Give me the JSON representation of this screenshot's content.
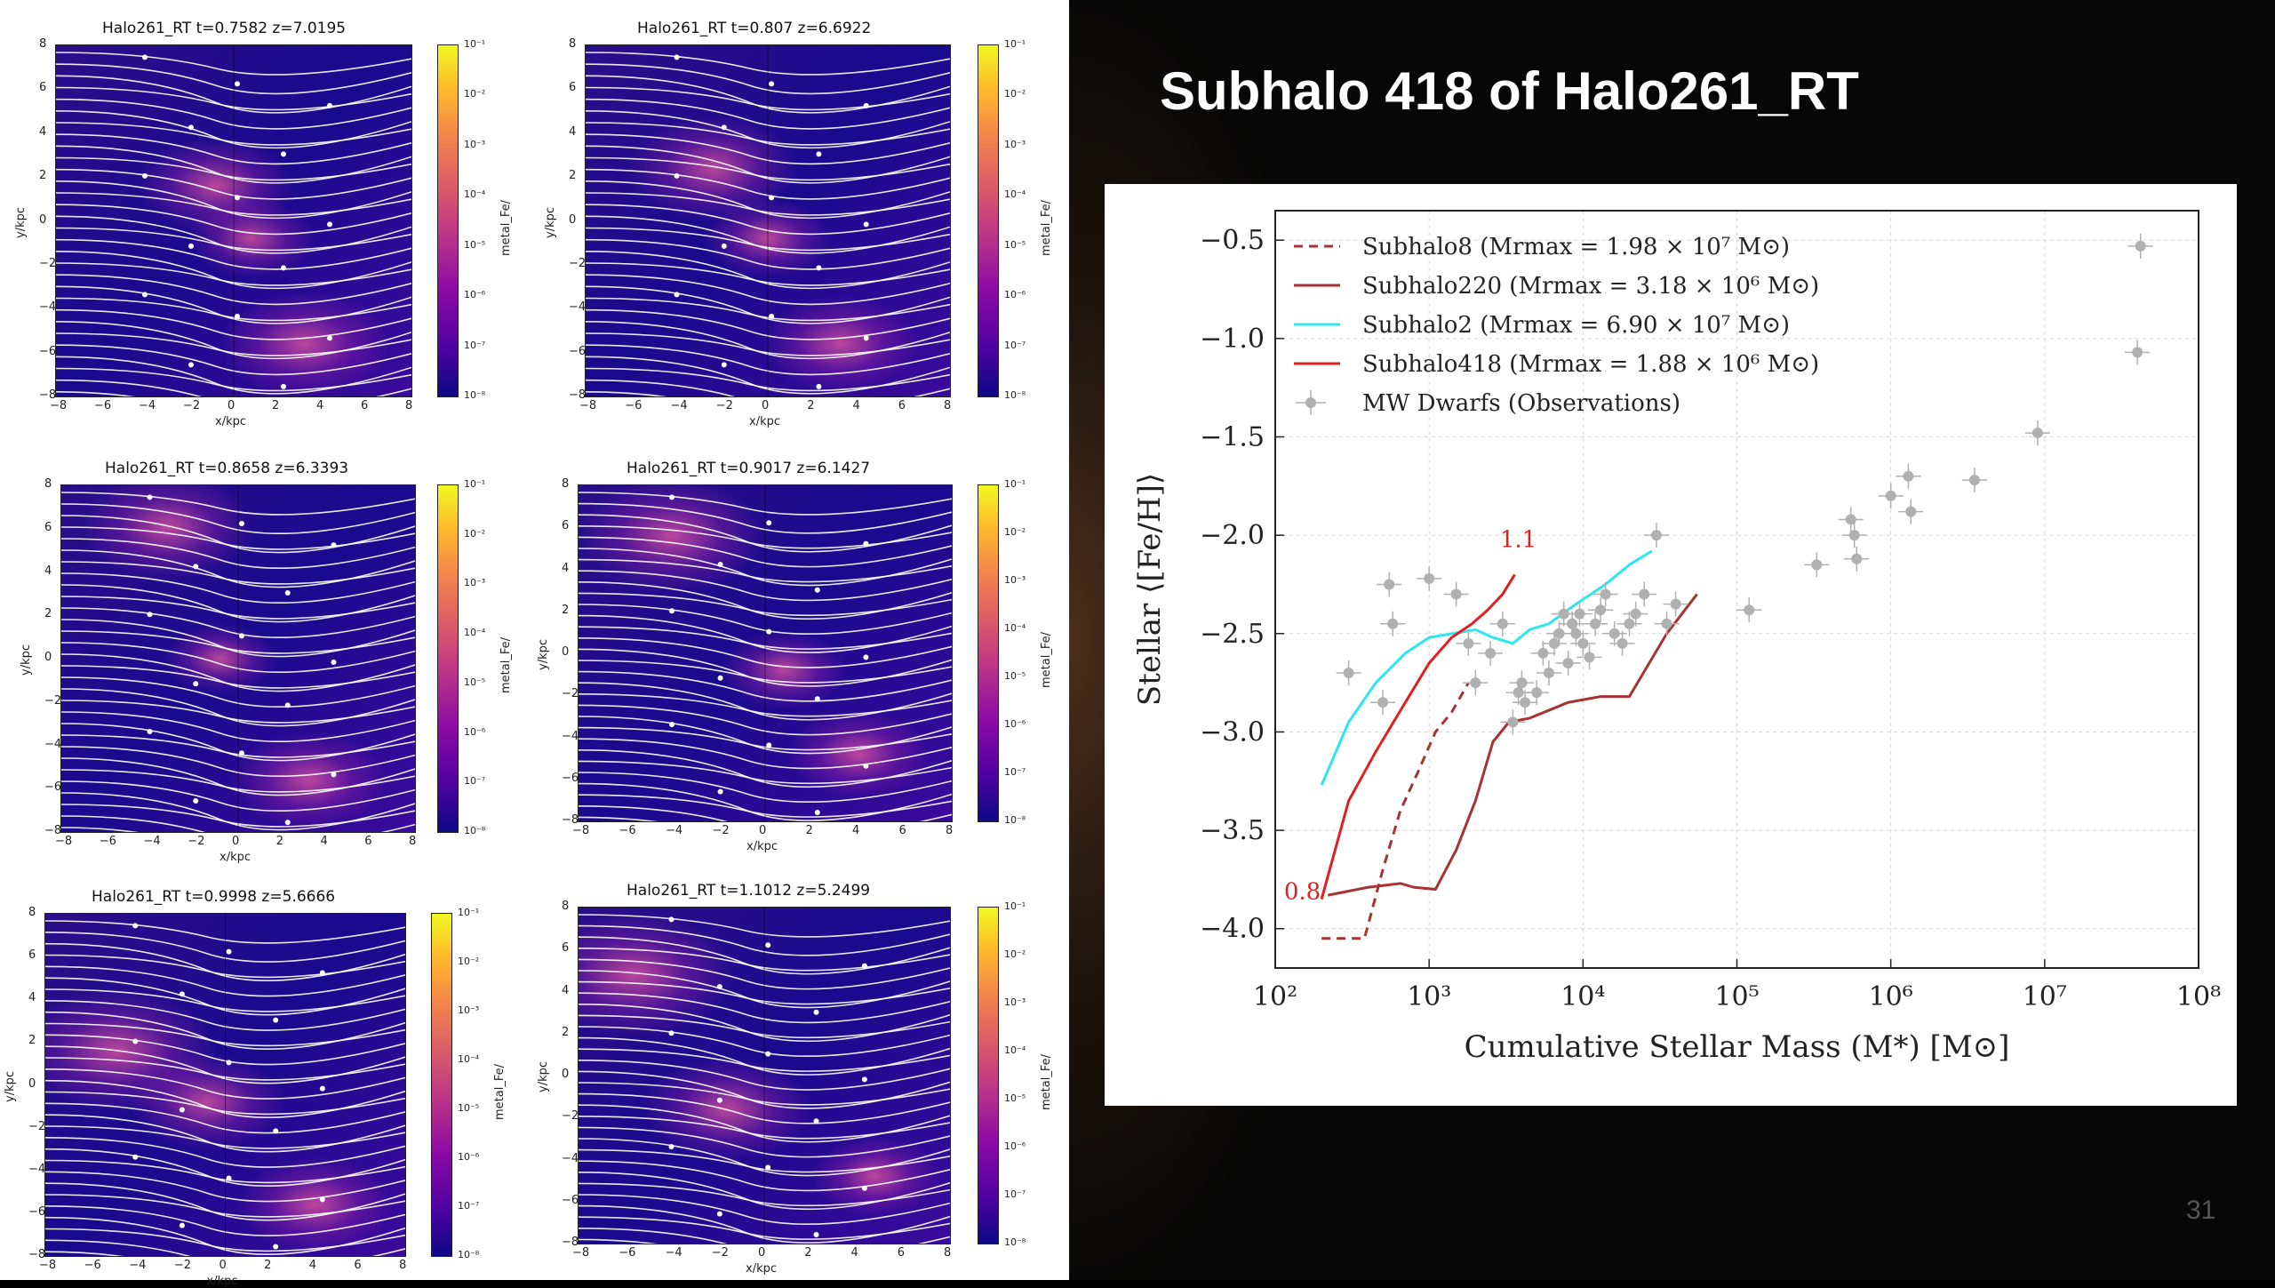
{
  "slide": {
    "title": "Subhalo 418 of Halo261_RT",
    "page_number": "31"
  },
  "panels": [
    {
      "title": "Halo261_RT  t=0.7582 z=7.0195"
    },
    {
      "title": "Halo261_RT  t=0.807 z=6.6922"
    },
    {
      "title": "Halo261_RT  t=0.8658 z=6.3393"
    },
    {
      "title": "Halo261_RT  t=0.9017 z=6.1427"
    },
    {
      "title": "Halo261_RT  t=0.9998 z=5.6666"
    },
    {
      "title": "Halo261_RT  t=1.1012 z=5.2499"
    }
  ],
  "panel_axes": {
    "xlabel": "x/kpc",
    "ylabel": "y/kpc",
    "ticks": [
      "−8",
      "−6",
      "−4",
      "−2",
      "0",
      "2",
      "4",
      "6",
      "8"
    ],
    "yticks": [
      "8",
      "6",
      "4",
      "2",
      "0",
      "−2",
      "−4",
      "−6",
      "−8"
    ],
    "colorbar_label": "metal_Fe/",
    "colorbar_ticks": [
      "10⁻¹",
      "10⁻²",
      "10⁻³",
      "10⁻⁴",
      "10⁻⁵",
      "10⁻⁶",
      "10⁻⁷",
      "10⁻⁸"
    ]
  },
  "chart_data": {
    "type": "line",
    "xlabel": "Cumulative Stellar Mass (M*) [M⊙]",
    "ylabel": "Stellar ⟨[Fe/H]⟩",
    "xscale": "log",
    "xlim": [
      100,
      100000000
    ],
    "ylim": [
      -4.2,
      -0.35
    ],
    "x_ticks": [
      "10²",
      "10³",
      "10⁴",
      "10⁵",
      "10⁶",
      "10⁷",
      "10⁸"
    ],
    "y_ticks": [
      "−0.5",
      "−1.0",
      "−1.5",
      "−2.0",
      "−2.5",
      "−3.0",
      "−3.5",
      "−4.0"
    ],
    "grid": true,
    "legend_position": "top-left",
    "annotations": [
      {
        "text": "1.1",
        "x": 3800,
        "y": -2.06,
        "color": "#e02020"
      },
      {
        "text": "0.8",
        "x": 150,
        "y": -3.85,
        "color": "#e02020"
      }
    ],
    "series": [
      {
        "name": "Subhalo8 (Mrmax = 1.98 × 10⁷ M⊙)",
        "color": "#a83232",
        "style": "dashed",
        "x": [
          200,
          380,
          500,
          650,
          850,
          1100,
          1400,
          1800
        ],
        "y": [
          -4.05,
          -4.05,
          -3.7,
          -3.4,
          -3.2,
          -3.0,
          -2.9,
          -2.75
        ]
      },
      {
        "name": "Subhalo220 (Mrmax = 3.18 × 10⁶ M⊙)",
        "color": "#a83232",
        "style": "solid",
        "x": [
          220,
          400,
          650,
          800,
          1100,
          1500,
          2000,
          2600,
          3300,
          4500,
          8000,
          13000,
          20000,
          35000,
          55000
        ],
        "y": [
          -3.83,
          -3.79,
          -3.77,
          -3.79,
          -3.8,
          -3.6,
          -3.35,
          -3.05,
          -2.95,
          -2.93,
          -2.85,
          -2.82,
          -2.82,
          -2.5,
          -2.3
        ]
      },
      {
        "name": "Subhalo2 (Mrmax = 6.90 × 10⁷ M⊙)",
        "color": "#2ee6f0",
        "style": "solid",
        "x": [
          200,
          300,
          450,
          700,
          1000,
          1400,
          2000,
          2600,
          3500,
          4500,
          6000,
          9000,
          14000,
          20000,
          28000
        ],
        "y": [
          -3.27,
          -2.95,
          -2.75,
          -2.6,
          -2.52,
          -2.5,
          -2.48,
          -2.52,
          -2.55,
          -2.48,
          -2.45,
          -2.35,
          -2.25,
          -2.15,
          -2.08
        ]
      },
      {
        "name": "Subhalo418 (Mrmax = 1.88 × 10⁶ M⊙)",
        "color": "#e02020",
        "style": "solid",
        "x": [
          200,
          300,
          450,
          700,
          1000,
          1400,
          1900,
          2400,
          3000,
          3600
        ],
        "y": [
          -3.85,
          -3.35,
          -3.1,
          -2.85,
          -2.65,
          -2.52,
          -2.45,
          -2.38,
          -2.3,
          -2.2
        ]
      },
      {
        "name": "MW Dwarfs (Observations)",
        "color": "#b0b0b0",
        "style": "markers",
        "x": [
          300,
          500,
          550,
          580,
          1000,
          1500,
          1800,
          2000,
          2500,
          3000,
          3500,
          3800,
          4000,
          4200,
          5000,
          5500,
          6000,
          6500,
          7000,
          7500,
          8000,
          8500,
          9000,
          9500,
          10000,
          11000,
          12000,
          13000,
          14000,
          16000,
          18000,
          20000,
          22000,
          25000,
          30000,
          35000,
          40000,
          120000,
          330000,
          550000,
          580000,
          600000,
          1000000,
          1300000,
          1350000,
          3500000,
          9000000,
          40000000,
          42000000
        ],
        "y": [
          -2.7,
          -2.85,
          -2.25,
          -2.45,
          -2.22,
          -2.3,
          -2.55,
          -2.75,
          -2.6,
          -2.45,
          -2.95,
          -2.8,
          -2.75,
          -2.85,
          -2.8,
          -2.6,
          -2.7,
          -2.55,
          -2.5,
          -2.4,
          -2.65,
          -2.45,
          -2.5,
          -2.4,
          -2.55,
          -2.62,
          -2.45,
          -2.38,
          -2.3,
          -2.5,
          -2.55,
          -2.45,
          -2.4,
          -2.3,
          -2.0,
          -2.45,
          -2.35,
          -2.38,
          -2.15,
          -1.92,
          -2.0,
          -2.12,
          -1.8,
          -1.7,
          -1.88,
          -1.72,
          -1.48,
          -1.07,
          -0.53
        ]
      }
    ]
  }
}
